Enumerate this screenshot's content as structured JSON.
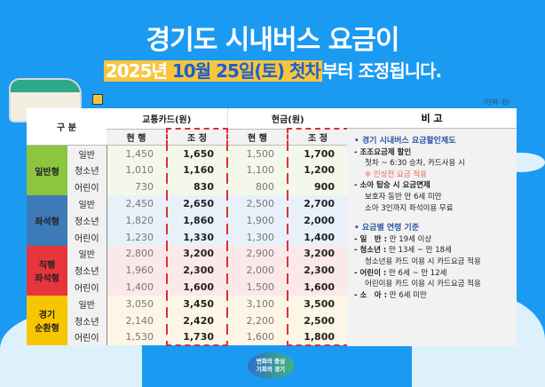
{
  "header": {
    "title": "경기도 시내버스 요금이",
    "subtitle_part1": "2025년",
    "subtitle_part2": "10월 25일(토) 첫차",
    "subtitle_part3": "부터 조정됩니다.",
    "unit": "(단위: 원)"
  },
  "colors": {
    "background": "#1b9af2",
    "highlight": "#f7c53d",
    "general": "#8cc63f",
    "seat": "#3d7ab8",
    "express": "#e8343c",
    "circular": "#f7c600"
  },
  "table": {
    "col_category": "구 분",
    "col_card": "교통카드(원)",
    "col_cash": "현금(원)",
    "col_notes": "비 고",
    "current": "현 행",
    "adjusted": "조 정",
    "groups": [
      {
        "name": "일반형",
        "color": "#8cc63f",
        "bg": "#f3f8ea",
        "rows": [
          {
            "type": "일반",
            "card_cur": "1,450",
            "card_adj": "1,650",
            "cash_cur": "1,500",
            "cash_adj": "1,700"
          },
          {
            "type": "청소년",
            "card_cur": "1,010",
            "card_adj": "1,160",
            "cash_cur": "1,100",
            "cash_adj": "1,200"
          },
          {
            "type": "어린이",
            "card_cur": "730",
            "card_adj": "830",
            "cash_cur": "800",
            "cash_adj": "900"
          }
        ]
      },
      {
        "name": "좌석형",
        "color": "#3d7ab8",
        "bg": "#e8f1fa",
        "rows": [
          {
            "type": "일반",
            "card_cur": "2,450",
            "card_adj": "2,650",
            "cash_cur": "2,500",
            "cash_adj": "2,700"
          },
          {
            "type": "청소년",
            "card_cur": "1,820",
            "card_adj": "1,860",
            "cash_cur": "1,900",
            "cash_adj": "2,000"
          },
          {
            "type": "어린이",
            "card_cur": "1,230",
            "card_adj": "1,330",
            "cash_cur": "1,300",
            "cash_adj": "1,400"
          }
        ]
      },
      {
        "name": "직행\n좌석형",
        "color": "#e8343c",
        "bg": "#fbe9ea",
        "rows": [
          {
            "type": "일반",
            "card_cur": "2,800",
            "card_adj": "3,200",
            "cash_cur": "2,900",
            "cash_adj": "3,200"
          },
          {
            "type": "청소년",
            "card_cur": "1,960",
            "card_adj": "2,300",
            "cash_cur": "2,000",
            "cash_adj": "2,300"
          },
          {
            "type": "어린이",
            "card_cur": "1,400",
            "card_adj": "1,600",
            "cash_cur": "1,500",
            "cash_adj": "1,600"
          }
        ]
      },
      {
        "name": "경기\n순환형",
        "color": "#f7c600",
        "bg": "#fdf6e6",
        "rows": [
          {
            "type": "일반",
            "card_cur": "3,050",
            "card_adj": "3,450",
            "cash_cur": "3,100",
            "cash_adj": "3,500"
          },
          {
            "type": "청소년",
            "card_cur": "2,140",
            "card_adj": "2,420",
            "cash_cur": "2,200",
            "cash_adj": "2,500"
          },
          {
            "type": "어린이",
            "card_cur": "1,530",
            "card_adj": "1,730",
            "cash_cur": "1,600",
            "cash_adj": "1,800"
          }
        ]
      }
    ]
  },
  "notes": {
    "sec1": "• 경기 시내버스 요금할인제도",
    "s1a": "- 조조요금제 할인",
    "s1a1": "첫차 ~ 6:30 승차, 카드사용 시",
    "s1a2": "※ 인상전 요금 적용",
    "s1b": "- 소아 탑승 시 요금면제",
    "s1b1": "보호자 동반 만 6세 미만",
    "s1b2": "소아 3인까지 좌석이용 무료",
    "sec2": "• 요금별 연령 기준",
    "a1k": "- 일　반 :",
    "a1v": " 만 19세 이상",
    "a2k": "- 청소년 :",
    "a2v": " 만 13세 ~ 만 18세",
    "a2n": "청소년용 카드 이용 시 카드요금 적용",
    "a3k": "- 어린이 :",
    "a3v": " 만 6세 ~ 만 12세",
    "a3n": "어린이용 카드 이용 시 카드요금 적용",
    "a4k": "- 소　아 :",
    "a4v": " 만 6세 미만"
  },
  "logo": {
    "line1": "변화의 중심",
    "line2": "기회의 경기"
  }
}
